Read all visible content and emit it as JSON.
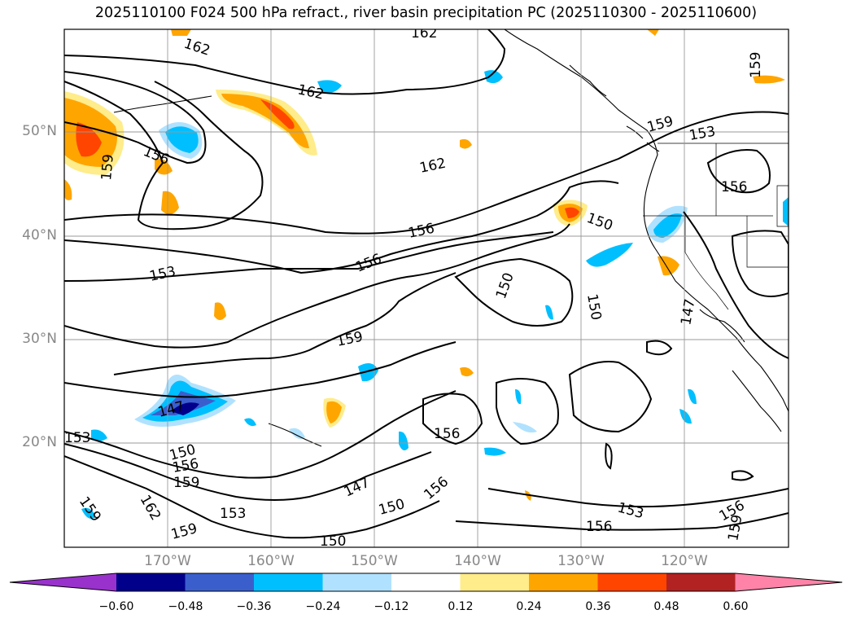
{
  "title": "2025110100 F024 500 hPa refract., river basin precipitation PC (2025110300 - 2025110600)",
  "lat_labels": [
    "50°N",
    "40°N",
    "30°N",
    "20°N"
  ],
  "lon_labels": [
    "170°W",
    "160°W",
    "150°W",
    "140°W",
    "130°W",
    "120°W"
  ],
  "colorbar": {
    "colors": [
      "#9932cc",
      "#00008b",
      "#3a5fcd",
      "#00bfff",
      "#b0e2ff",
      "#ffffff",
      "#ffec8b",
      "#ffa500",
      "#ff4500",
      "#b22222",
      "#ff83a8"
    ],
    "ticks": [
      "−0.60",
      "−0.48",
      "−0.36",
      "−0.24",
      "−0.12",
      "0.12",
      "0.24",
      "0.36",
      "0.48",
      "0.60"
    ]
  },
  "contour_labels": [
    "162",
    "162",
    "162",
    "162",
    "159",
    "159",
    "159",
    "159",
    "159",
    "159",
    "159",
    "156",
    "156",
    "156",
    "156",
    "156",
    "156",
    "156",
    "156",
    "153",
    "153",
    "153",
    "153",
    "150",
    "150",
    "150",
    "150",
    "150",
    "147",
    "147",
    "147",
    "162",
    "159",
    "156",
    "150",
    "153"
  ]
}
